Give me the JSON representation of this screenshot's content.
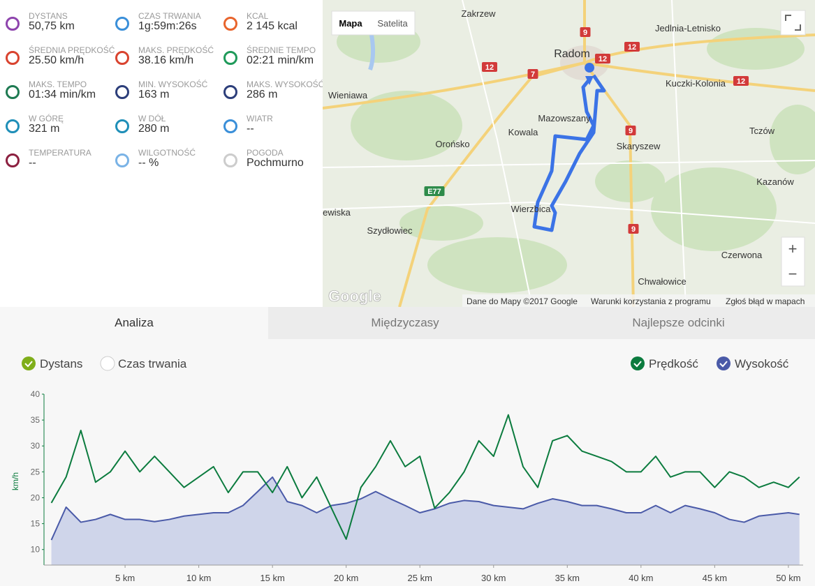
{
  "stats": [
    {
      "label": "DYSTANS",
      "value": "50,75 km"
    },
    {
      "label": "CZAS TRWANIA",
      "value": "1g:59m:26s"
    },
    {
      "label": "KCAL",
      "value": "2 145 kcal"
    },
    {
      "label": "ŚREDNIA PRĘDKOŚĆ",
      "value": "25.50 km/h"
    },
    {
      "label": "MAKS. PRĘDKOŚĆ",
      "value": "38.16 km/h"
    },
    {
      "label": "ŚREDNIE TEMPO",
      "value": "02:21 min/km"
    },
    {
      "label": "MAKS. TEMPO",
      "value": "01:34 min/km"
    },
    {
      "label": "MIN. WYSOKOŚĆ",
      "value": "163 m"
    },
    {
      "label": "MAKS. WYSOKOŚĆ",
      "value": "286 m"
    },
    {
      "label": "W GÓRĘ",
      "value": "321 m"
    },
    {
      "label": "W DÓŁ",
      "value": "280 m"
    },
    {
      "label": "WIATR",
      "value": "--"
    },
    {
      "label": "TEMPERATURA",
      "value": "--"
    },
    {
      "label": "WILGOTNOŚĆ",
      "value": "-- %"
    },
    {
      "label": "POGODA",
      "value": "Pochmurno"
    }
  ],
  "map": {
    "buttons": [
      "Mapa",
      "Satelita"
    ],
    "zoom": [
      "+",
      "−"
    ],
    "places": [
      "Zakrzew",
      "Jedlnia-Letnisko",
      "Radom",
      "Wieniawa",
      "Kuczki-Kolonia",
      "Mazowszany",
      "Kowala",
      "Skaryszew",
      "Orońsko",
      "Tczów",
      "Kazanów",
      "Wierzbica",
      "ewiska",
      "Szydłowiec",
      "Czerwona",
      "Chwałowice"
    ],
    "road_signs": [
      "9",
      "12",
      "12",
      "12",
      "7",
      "12",
      "9",
      "9",
      "E77"
    ],
    "logo": "Google",
    "footer": [
      "Dane do Mapy ©2017 Google",
      "Warunki korzystania z programu",
      "Zgłoś błąd w mapach"
    ]
  },
  "tabs": [
    "Analiza",
    "Międzyczasy",
    "Najlepsze odcinki"
  ],
  "x_modes": [
    "Dystans",
    "Czas trwania"
  ],
  "chart_data": {
    "type": "line",
    "y_label": "km/h",
    "x": [
      0,
      1,
      2,
      3,
      4,
      5,
      6,
      7,
      8,
      9,
      10,
      11,
      12,
      13,
      14,
      15,
      16,
      17,
      18,
      19,
      20,
      21,
      22,
      23,
      24,
      25,
      26,
      27,
      28,
      29,
      30,
      31,
      32,
      33,
      34,
      35,
      36,
      37,
      38,
      39,
      40,
      41,
      42,
      43,
      44,
      45,
      46,
      47,
      48,
      49,
      50,
      50.75
    ],
    "xlim": [
      -0.5,
      51
    ],
    "xticks": [
      {
        "value": 5,
        "label": "5 km"
      },
      {
        "value": 10,
        "label": "10 km"
      },
      {
        "value": 15,
        "label": "15 km"
      },
      {
        "value": 20,
        "label": "20 km"
      },
      {
        "value": 25,
        "label": "25 km"
      },
      {
        "value": 30,
        "label": "30 km"
      },
      {
        "value": 35,
        "label": "35 km"
      },
      {
        "value": 40,
        "label": "40 km"
      },
      {
        "value": 45,
        "label": "45 km"
      },
      {
        "value": 50,
        "label": "50 km"
      }
    ],
    "ylim": [
      7,
      40
    ],
    "yticks": [
      10,
      15,
      20,
      25,
      30,
      35,
      40
    ],
    "y2lim": [
      118,
      425
    ],
    "series": [
      {
        "name": "Prędkość",
        "color": "#0b7b3e",
        "values": [
          19,
          24,
          33,
          23,
          25,
          29,
          25,
          28,
          25,
          22,
          24,
          26,
          21,
          25,
          25,
          21,
          26,
          20,
          24,
          18,
          12,
          22,
          26,
          31,
          26,
          28,
          18,
          21,
          25,
          31,
          28,
          36,
          26,
          22,
          31,
          32,
          29,
          28,
          27,
          25,
          25,
          28,
          24,
          25,
          25,
          22,
          25,
          24,
          22,
          23,
          22,
          24
        ]
      },
      {
        "name": "Wysokość",
        "color": "#4a5aa8",
        "axis": "y2",
        "values": [
          163,
          222,
          195,
          200,
          209,
          200,
          200,
          196,
          200,
          206,
          209,
          212,
          212,
          225,
          250,
          276,
          232,
          225,
          212,
          225,
          229,
          237,
          250,
          237,
          225,
          212,
          219,
          229,
          234,
          232,
          225,
          222,
          219,
          229,
          237,
          232,
          225,
          225,
          219,
          212,
          212,
          225,
          212,
          225,
          219,
          212,
          200,
          195,
          206,
          209,
          212,
          209
        ]
      }
    ]
  }
}
